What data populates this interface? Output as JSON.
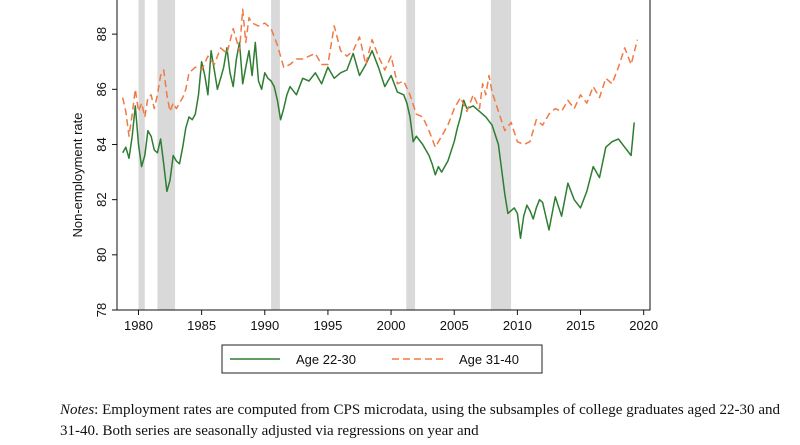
{
  "chart_data": {
    "type": "line",
    "ylabel": "Non-employment rate",
    "xlabel": "",
    "xlim": [
      1978.3,
      2020.5
    ],
    "ylim": [
      78,
      89.6
    ],
    "x_ticks": [
      1980,
      1985,
      1990,
      1995,
      2000,
      2005,
      2010,
      2015,
      2020
    ],
    "x_tick_labels": [
      "1980",
      "1985",
      "1990",
      "1995",
      "2000",
      "2005",
      "2010",
      "2015",
      "2020"
    ],
    "y_ticks": [
      78,
      80,
      82,
      84,
      86,
      88
    ],
    "y_tick_labels": [
      "78",
      "80",
      "82",
      "84",
      "86",
      "88"
    ],
    "recessions": [
      [
        1980.0,
        1980.5
      ],
      [
        1981.5,
        1982.9
      ],
      [
        1990.5,
        1991.2
      ],
      [
        2001.2,
        2001.9
      ],
      [
        2007.9,
        2009.5
      ]
    ],
    "recession_color": "#d9d9d9",
    "legend_position": "bottom-center",
    "series": [
      {
        "name": "Age 22-30",
        "color": "#2e7d32",
        "style": "solid",
        "x": [
          1978.75,
          1979.0,
          1979.25,
          1979.5,
          1979.75,
          1980.0,
          1980.25,
          1980.5,
          1980.75,
          1981.0,
          1981.25,
          1981.5,
          1981.75,
          1982.0,
          1982.25,
          1982.5,
          1982.75,
          1983.0,
          1983.25,
          1983.5,
          1983.75,
          1984.0,
          1984.25,
          1984.5,
          1984.75,
          1985.0,
          1985.25,
          1985.5,
          1985.75,
          1986.0,
          1986.25,
          1986.5,
          1986.75,
          1987.0,
          1987.25,
          1987.5,
          1987.75,
          1988.0,
          1988.25,
          1988.5,
          1988.75,
          1989.0,
          1989.25,
          1989.5,
          1989.75,
          1990.0,
          1990.25,
          1990.5,
          1990.75,
          1991.0,
          1991.25,
          1991.5,
          1991.75,
          1992.0,
          1992.5,
          1993.0,
          1993.5,
          1994.0,
          1994.5,
          1995.0,
          1995.5,
          1996.0,
          1996.5,
          1997.0,
          1997.5,
          1998.0,
          1998.5,
          1999.0,
          1999.5,
          2000.0,
          2000.5,
          2001.0,
          2001.25,
          2001.5,
          2001.75,
          2002.0,
          2002.5,
          2003.0,
          2003.25,
          2003.5,
          2003.75,
          2004.0,
          2004.5,
          2005.0,
          2005.25,
          2005.5,
          2005.75,
          2006.0,
          2006.5,
          2007.0,
          2007.5,
          2008.0,
          2008.5,
          2009.0,
          2009.25,
          2009.5,
          2009.75,
          2010.0,
          2010.25,
          2010.5,
          2010.75,
          2011.0,
          2011.25,
          2011.5,
          2011.75,
          2012.0,
          2012.5,
          2013.0,
          2013.5,
          2014.0,
          2014.5,
          2015.0,
          2015.5,
          2016.0,
          2016.5,
          2017.0,
          2017.5,
          2018.0,
          2018.5,
          2019.0,
          2019.25
        ],
        "values": [
          83.7,
          83.9,
          83.5,
          84.3,
          85.4,
          84.0,
          83.2,
          83.6,
          84.5,
          84.3,
          83.8,
          83.7,
          84.2,
          83.3,
          82.3,
          82.7,
          83.6,
          83.4,
          83.3,
          83.9,
          84.6,
          85.0,
          84.9,
          85.1,
          85.8,
          87.0,
          86.5,
          85.8,
          87.4,
          86.7,
          86.0,
          86.4,
          86.8,
          87.5,
          86.6,
          86.1,
          87.1,
          87.7,
          86.2,
          86.8,
          87.4,
          86.5,
          87.7,
          86.3,
          86.0,
          86.6,
          86.4,
          86.3,
          86.1,
          85.6,
          84.9,
          85.3,
          85.8,
          86.1,
          85.8,
          86.4,
          86.3,
          86.6,
          86.2,
          86.8,
          86.4,
          86.6,
          86.7,
          87.3,
          86.5,
          86.9,
          87.4,
          86.8,
          86.1,
          86.5,
          85.9,
          85.8,
          85.5,
          85.0,
          84.1,
          84.3,
          84.0,
          83.6,
          83.3,
          82.9,
          83.2,
          83.0,
          83.4,
          84.1,
          84.6,
          85.0,
          85.6,
          85.3,
          85.4,
          85.2,
          85.0,
          84.7,
          84.0,
          82.2,
          81.5,
          81.6,
          81.7,
          81.5,
          80.6,
          81.4,
          81.8,
          81.6,
          81.3,
          81.7,
          82.0,
          81.9,
          80.9,
          82.1,
          81.4,
          82.6,
          82.0,
          81.7,
          82.3,
          83.2,
          82.8,
          83.9,
          84.1,
          84.2,
          83.9,
          83.6,
          84.8
        ]
      },
      {
        "name": "Age 31-40",
        "color": "#f07a45",
        "style": "dashed",
        "x": [
          1978.75,
          1979.0,
          1979.25,
          1979.5,
          1979.75,
          1980.0,
          1980.25,
          1980.5,
          1980.75,
          1981.0,
          1981.25,
          1981.5,
          1981.75,
          1982.0,
          1982.25,
          1982.5,
          1982.75,
          1983.0,
          1983.25,
          1983.5,
          1983.75,
          1984.0,
          1984.5,
          1985.0,
          1985.5,
          1986.0,
          1986.5,
          1987.0,
          1987.5,
          1988.0,
          1988.25,
          1988.5,
          1988.75,
          1989.0,
          1989.5,
          1990.0,
          1990.5,
          1991.0,
          1991.5,
          1992.0,
          1992.5,
          1993.0,
          1993.5,
          1994.0,
          1994.5,
          1995.0,
          1995.5,
          1996.0,
          1996.5,
          1997.0,
          1997.5,
          1998.0,
          1998.5,
          1999.0,
          1999.5,
          2000.0,
          2000.5,
          2001.0,
          2001.5,
          2002.0,
          2002.5,
          2003.0,
          2003.5,
          2004.0,
          2004.5,
          2005.0,
          2005.5,
          2006.0,
          2006.5,
          2007.0,
          2007.25,
          2007.5,
          2007.75,
          2008.0,
          2008.5,
          2009.0,
          2009.5,
          2010.0,
          2010.5,
          2011.0,
          2011.5,
          2012.0,
          2012.5,
          2013.0,
          2013.5,
          2014.0,
          2014.5,
          2015.0,
          2015.5,
          2016.0,
          2016.5,
          2017.0,
          2017.5,
          2018.0,
          2018.5,
          2019.0,
          2019.5
        ],
        "values": [
          85.7,
          85.2,
          84.3,
          85.1,
          86.0,
          85.2,
          85.5,
          85.0,
          85.7,
          85.8,
          85.3,
          85.8,
          86.5,
          86.7,
          85.8,
          85.2,
          85.5,
          85.3,
          85.5,
          85.7,
          86.0,
          86.6,
          86.8,
          86.7,
          87.2,
          86.9,
          87.5,
          87.3,
          88.2,
          87.4,
          88.9,
          87.7,
          88.6,
          88.4,
          88.3,
          88.4,
          88.2,
          87.6,
          86.8,
          86.9,
          87.1,
          87.1,
          87.2,
          87.3,
          86.9,
          86.9,
          88.3,
          87.4,
          87.2,
          87.4,
          87.9,
          86.9,
          87.8,
          87.2,
          86.7,
          87.2,
          86.2,
          86.3,
          85.8,
          85.1,
          85.0,
          84.5,
          83.9,
          84.3,
          84.7,
          85.3,
          85.7,
          85.2,
          85.8,
          85.3,
          86.2,
          85.8,
          86.5,
          85.9,
          85.2,
          84.5,
          84.8,
          84.1,
          84.0,
          84.1,
          84.9,
          84.7,
          85.1,
          85.3,
          85.2,
          85.6,
          85.3,
          85.8,
          85.5,
          86.1,
          85.7,
          86.4,
          86.2,
          86.8,
          87.5,
          86.9,
          87.8
        ]
      }
    ]
  },
  "notes": {
    "label": "Notes",
    "text": ": Employment rates are computed from CPS microdata, using the subsamples of college graduates aged 22-30 and 31-40. Both series are seasonally adjusted via regressions on year and"
  }
}
